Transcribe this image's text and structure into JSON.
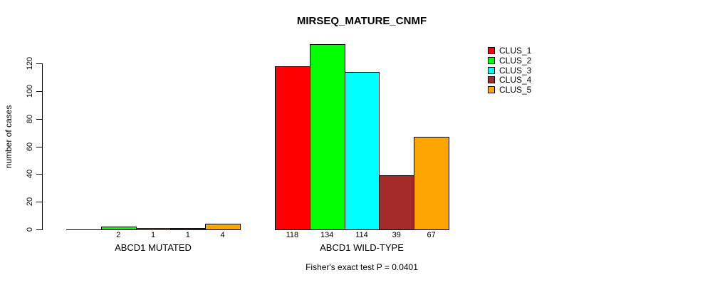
{
  "chart_data": {
    "type": "bar",
    "title": "MIRSEQ_MATURE_CNMF",
    "ylabel": "number of cases",
    "xlabel": "",
    "ylim": [
      0,
      120
    ],
    "yticks": [
      0,
      20,
      40,
      60,
      80,
      100,
      120
    ],
    "grid": false,
    "legend_position": "top-right",
    "categories": [
      "ABCD1 MUTATED",
      "ABCD1 WILD-TYPE"
    ],
    "series": [
      {
        "name": "CLUS_1",
        "color": "#FF0000",
        "values": [
          0,
          118
        ]
      },
      {
        "name": "CLUS_2",
        "color": "#00FF00",
        "values": [
          2,
          134
        ]
      },
      {
        "name": "CLUS_3",
        "color": "#00FFFF",
        "values": [
          1,
          114
        ]
      },
      {
        "name": "CLUS_4",
        "color": "#A52A2A",
        "values": [
          1,
          39
        ]
      },
      {
        "name": "CLUS_5",
        "color": "#FFA500",
        "values": [
          4,
          67
        ]
      }
    ],
    "bar_labels": [
      [
        "",
        "2",
        "1",
        "1",
        "4"
      ],
      [
        "118",
        "134",
        "114",
        "39",
        "67"
      ]
    ],
    "caption": "Fisher's exact test P = 0.0401"
  }
}
